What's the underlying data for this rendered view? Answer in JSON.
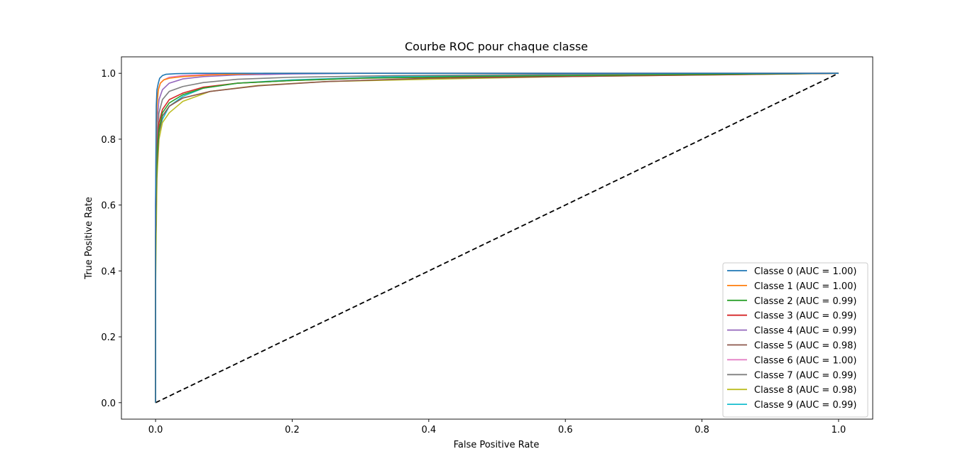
{
  "chart_data": {
    "type": "line",
    "title": "Courbe ROC pour chaque classe",
    "xlabel": "False Positive Rate",
    "ylabel": "True Positive Rate",
    "xlim": [
      -0.05,
      1.05
    ],
    "ylim": [
      -0.05,
      1.05
    ],
    "xticks": [
      "0.0",
      "0.2",
      "0.4",
      "0.6",
      "0.8",
      "1.0"
    ],
    "yticks": [
      "0.0",
      "0.2",
      "0.4",
      "0.6",
      "0.8",
      "1.0"
    ],
    "grid": false,
    "legend_position": "bottom-right",
    "series": [
      {
        "name": "Classe 0 (AUC = 1.00)",
        "color": "#1f77b4",
        "x": [
          0,
          0,
          0.001,
          0.002,
          0.004,
          0.006,
          0.01,
          0.015,
          0.03,
          0.06,
          1.0
        ],
        "y": [
          0,
          0.6,
          0.9,
          0.95,
          0.97,
          0.985,
          0.993,
          0.997,
          0.999,
          1.0,
          1.0
        ]
      },
      {
        "name": "Classe 1 (AUC = 1.00)",
        "color": "#ff7f0e",
        "x": [
          0,
          0,
          0.001,
          0.002,
          0.004,
          0.007,
          0.012,
          0.02,
          0.04,
          0.08,
          0.16,
          1.0
        ],
        "y": [
          0,
          0.5,
          0.8,
          0.9,
          0.95,
          0.97,
          0.98,
          0.985,
          0.99,
          0.995,
          1.0,
          1.0
        ]
      },
      {
        "name": "Classe 2 (AUC = 0.99)",
        "color": "#2ca02c",
        "x": [
          0,
          0,
          0.002,
          0.005,
          0.01,
          0.02,
          0.04,
          0.07,
          0.12,
          0.2,
          0.3,
          0.45,
          0.7,
          1.0
        ],
        "y": [
          0,
          0.5,
          0.75,
          0.83,
          0.88,
          0.91,
          0.935,
          0.955,
          0.97,
          0.978,
          0.985,
          0.99,
          0.995,
          1.0
        ]
      },
      {
        "name": "Classe 3 (AUC = 0.99)",
        "color": "#d62728",
        "x": [
          0,
          0,
          0.002,
          0.005,
          0.01,
          0.02,
          0.04,
          0.07,
          0.12,
          0.2,
          0.3,
          0.5,
          0.8,
          1.0
        ],
        "y": [
          0,
          0.5,
          0.77,
          0.85,
          0.89,
          0.92,
          0.94,
          0.958,
          0.97,
          0.978,
          0.985,
          0.99,
          0.996,
          1.0
        ]
      },
      {
        "name": "Classe 4 (AUC = 0.99)",
        "color": "#9467bd",
        "x": [
          0,
          0,
          0.002,
          0.005,
          0.01,
          0.02,
          0.04,
          0.07,
          0.12,
          0.2,
          0.3,
          1.0
        ],
        "y": [
          0,
          0.6,
          0.85,
          0.92,
          0.95,
          0.97,
          0.983,
          0.99,
          0.995,
          0.998,
          1.0,
          1.0
        ]
      },
      {
        "name": "Classe 5 (AUC = 0.98)",
        "color": "#8c564b",
        "x": [
          0,
          0,
          0.002,
          0.005,
          0.01,
          0.02,
          0.04,
          0.08,
          0.15,
          0.25,
          0.4,
          0.6,
          0.85,
          1.0
        ],
        "y": [
          0,
          0.5,
          0.72,
          0.82,
          0.87,
          0.9,
          0.925,
          0.945,
          0.962,
          0.975,
          0.985,
          0.99,
          0.996,
          1.0
        ]
      },
      {
        "name": "Classe 6 (AUC = 1.00)",
        "color": "#e377c2",
        "x": [
          0,
          0,
          0.001,
          0.002,
          0.004,
          0.007,
          0.012,
          0.02,
          0.04,
          0.08,
          0.2,
          1.0
        ],
        "y": [
          0,
          0.6,
          0.85,
          0.92,
          0.95,
          0.97,
          0.98,
          0.988,
          0.993,
          0.997,
          1.0,
          1.0
        ]
      },
      {
        "name": "Classe 7 (AUC = 0.99)",
        "color": "#7f7f7f",
        "x": [
          0,
          0,
          0.002,
          0.005,
          0.01,
          0.02,
          0.04,
          0.07,
          0.12,
          0.2,
          0.35,
          0.6,
          1.0
        ],
        "y": [
          0,
          0.5,
          0.8,
          0.88,
          0.92,
          0.945,
          0.96,
          0.972,
          0.982,
          0.988,
          0.993,
          0.997,
          1.0
        ]
      },
      {
        "name": "Classe 8 (AUC = 0.98)",
        "color": "#bcbd22",
        "x": [
          0,
          0,
          0.002,
          0.005,
          0.01,
          0.02,
          0.04,
          0.08,
          0.15,
          0.25,
          0.4,
          0.6,
          0.8,
          1.0
        ],
        "y": [
          0,
          0.35,
          0.68,
          0.8,
          0.85,
          0.88,
          0.915,
          0.945,
          0.963,
          0.975,
          0.982,
          0.99,
          0.995,
          1.0
        ]
      },
      {
        "name": "Classe 9 (AUC = 0.99)",
        "color": "#17becf",
        "x": [
          0,
          0,
          0.002,
          0.005,
          0.01,
          0.02,
          0.04,
          0.07,
          0.12,
          0.2,
          0.35,
          0.6,
          1.0
        ],
        "y": [
          0,
          0.45,
          0.72,
          0.82,
          0.86,
          0.9,
          0.93,
          0.955,
          0.97,
          0.98,
          0.99,
          0.996,
          1.0
        ]
      }
    ],
    "reference_line": {
      "style": "dashed",
      "color": "#000000",
      "x": [
        0,
        1
      ],
      "y": [
        0,
        1
      ]
    }
  }
}
